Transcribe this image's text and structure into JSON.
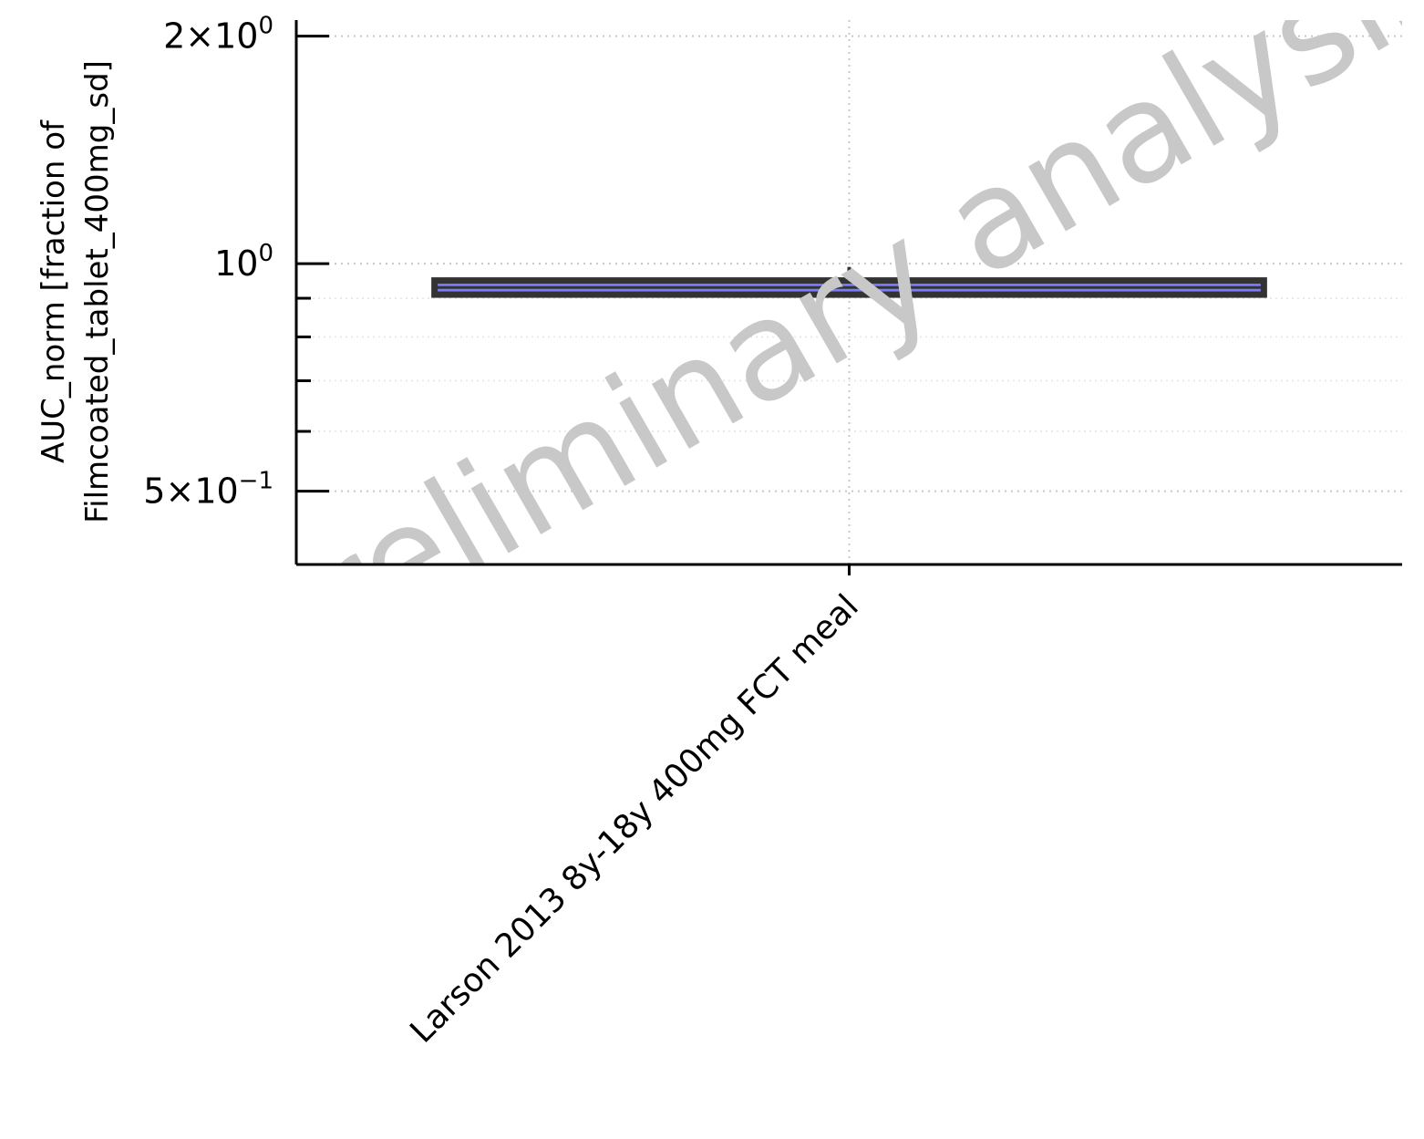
{
  "chart_data": {
    "type": "boxplot",
    "ylabel_lines": [
      "AUC_norm [fraction of",
      "Filmcoated_tablet_400mg_sd]"
    ],
    "y_scale": "log",
    "ylim": [
      0.4,
      2.1
    ],
    "y_major_ticks": [
      {
        "value": 0.5,
        "mantissa": "5",
        "exponent": "−1"
      },
      {
        "value": 1.0,
        "mantissa": "",
        "exponent": "0"
      },
      {
        "value": 2.0,
        "mantissa": "2",
        "exponent": "0"
      }
    ],
    "y_minor_ticks": [
      0.4,
      0.6,
      0.7,
      0.8,
      0.9
    ],
    "categories": [
      "Larson 2013 8y-18y 400mg FCT meal"
    ],
    "boxes": [
      {
        "category": "Larson 2013 8y-18y 400mg FCT meal",
        "q1": 0.91,
        "median": 0.93,
        "q3": 0.95,
        "whisker_low": 0.905,
        "whisker_high": 0.99
      }
    ],
    "grid": true,
    "box_color": "#7b7bff",
    "box_edge_color": "#333333",
    "watermark": "preliminary analysis"
  }
}
